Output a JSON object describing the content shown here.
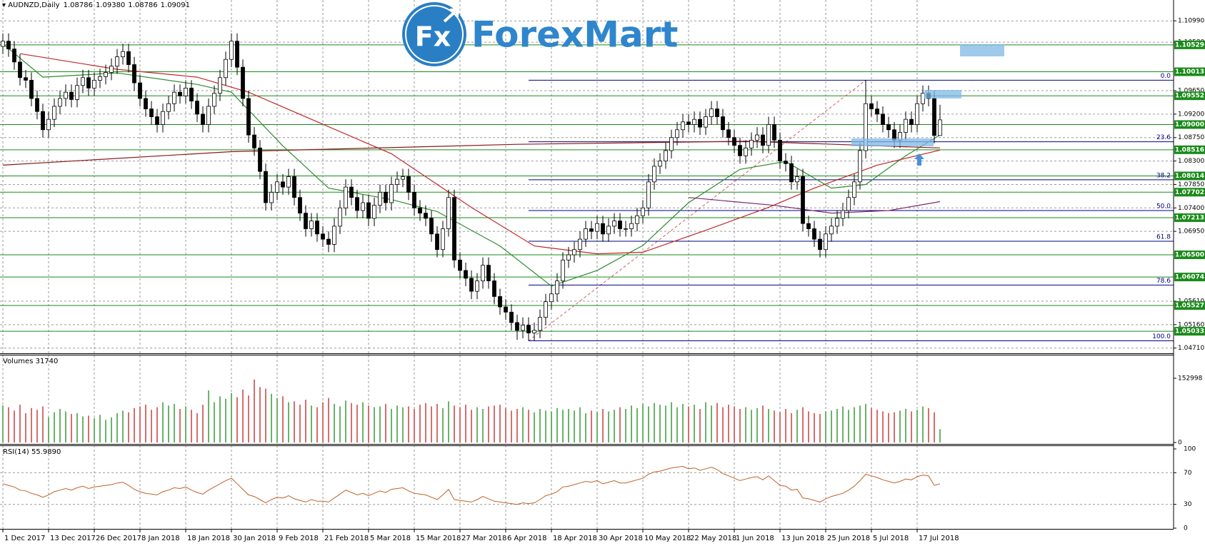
{
  "logo": {
    "badge": "Fx",
    "name": "ForexMart"
  },
  "chart_data": {
    "type": "candlestick",
    "title": "AUDNZD,Daily",
    "header_prices": [
      "1.08786",
      "1.09380",
      "1.08786",
      "1.09091"
    ],
    "categories": [
      "1 Dec 2017",
      null,
      null,
      null,
      null,
      null,
      null,
      null,
      "13 Dec 2017",
      null,
      null,
      null,
      null,
      null,
      null,
      null,
      "26 Dec 2017",
      null,
      null,
      null,
      null,
      null,
      null,
      null,
      "8 Jan 2018",
      null,
      null,
      null,
      null,
      null,
      null,
      null,
      "18 Jan 2018",
      null,
      null,
      null,
      null,
      null,
      null,
      null,
      "30 Jan 2018",
      null,
      null,
      null,
      null,
      null,
      null,
      null,
      "9 Feb 2018",
      null,
      null,
      null,
      null,
      null,
      null,
      null,
      "21 Feb 2018",
      null,
      null,
      null,
      null,
      null,
      null,
      null,
      "5 Mar 2018",
      null,
      null,
      null,
      null,
      null,
      null,
      null,
      "15 Mar 2018",
      null,
      null,
      null,
      null,
      null,
      null,
      null,
      "27 Mar 2018",
      null,
      null,
      null,
      null,
      null,
      null,
      null,
      "6 Apr 2018",
      null,
      null,
      null,
      null,
      null,
      null,
      null,
      "18 Apr 2018",
      null,
      null,
      null,
      null,
      null,
      null,
      null,
      "30 Apr 2018",
      null,
      null,
      null,
      null,
      null,
      null,
      null,
      "10 May 2018",
      null,
      null,
      null,
      null,
      null,
      null,
      null,
      "22 May 2018",
      null,
      null,
      null,
      null,
      null,
      null,
      null,
      "1 Jun 2018",
      null,
      null,
      null,
      null,
      null,
      null,
      null,
      "13 Jun 2018",
      null,
      null,
      null,
      null,
      null,
      null,
      null,
      "25 Jun 2018",
      null,
      null,
      null,
      null,
      null,
      null,
      null,
      "5 Jul 2018",
      null,
      null,
      null,
      null,
      null,
      null,
      null,
      "17 Jul 2018",
      null,
      null,
      null,
      null
    ],
    "open": [
      1.105,
      1.106,
      1.1045,
      1.102,
      1.099,
      1.0985,
      1.095,
      1.0925,
      1.089,
      1.091,
      1.0935,
      1.095,
      1.0962,
      1.0948,
      1.0975,
      1.099,
      1.097,
      1.0985,
      1.0992,
      1.1,
      1.1012,
      1.103,
      1.104,
      1.1015,
      1.098,
      1.095,
      1.093,
      1.0915,
      1.09,
      1.0925,
      1.094,
      1.0962,
      1.0955,
      1.097,
      1.0945,
      1.092,
      1.09,
      1.0935,
      1.096,
      1.099,
      1.1025,
      1.106,
      1.101,
      1.095,
      1.088,
      1.0855,
      1.081,
      1.075,
      1.077,
      1.079,
      1.078,
      1.08,
      1.076,
      1.073,
      1.07,
      1.0715,
      1.069,
      1.068,
      1.067,
      1.0705,
      1.074,
      1.078,
      1.076,
      1.0735,
      1.075,
      1.072,
      1.0745,
      1.077,
      1.075,
      1.0785,
      1.0795,
      1.08,
      1.077,
      1.074,
      1.073,
      1.072,
      1.069,
      1.066,
      1.07,
      1.076,
      1.064,
      1.062,
      1.0605,
      1.058,
      1.06,
      1.063,
      1.06,
      1.057,
      1.055,
      1.054,
      1.052,
      1.0505,
      1.0515,
      1.05,
      1.0505,
      1.053,
      1.056,
      1.0575,
      1.06,
      1.064,
      1.065,
      1.066,
      1.068,
      1.07,
      1.0695,
      1.071,
      1.069,
      1.0705,
      1.0715,
      1.07,
      1.07,
      1.071,
      1.0725,
      1.074,
      1.079,
      1.082,
      1.083,
      1.085,
      1.0875,
      1.089,
      1.0905,
      1.09,
      1.091,
      1.0895,
      1.0915,
      1.093,
      1.0915,
      1.089,
      1.0875,
      1.086,
      1.084,
      1.0855,
      1.087,
      1.088,
      1.086,
      1.09,
      1.087,
      1.083,
      1.0825,
      1.079,
      1.08,
      1.071,
      1.07,
      1.068,
      1.066,
      1.069,
      1.0705,
      1.072,
      1.0735,
      1.076,
      1.079,
      1.085,
      1.094,
      1.093,
      1.092,
      1.09,
      1.089,
      1.087,
      1.0885,
      1.091,
      1.09,
      1.094,
      1.096,
      1.095,
      1.0879
    ],
    "high": [
      1.1075,
      1.1075,
      1.106,
      1.1035,
      1.1005,
      1.1,
      1.0965,
      1.094,
      1.0925,
      1.095,
      1.0965,
      1.0977,
      1.0977,
      1.099,
      1.1005,
      1.1005,
      1.1,
      1.1007,
      1.1015,
      1.1027,
      1.1045,
      1.1055,
      1.1055,
      1.103,
      1.0995,
      1.0965,
      1.0945,
      1.093,
      1.094,
      1.0955,
      1.0977,
      1.0977,
      1.0985,
      1.0985,
      1.096,
      1.0935,
      1.095,
      1.0975,
      1.1005,
      1.104,
      1.1075,
      1.1075,
      1.1025,
      1.0965,
      1.0895,
      1.087,
      1.0825,
      1.0785,
      1.0805,
      1.0805,
      1.0815,
      1.0815,
      1.0775,
      1.0745,
      1.073,
      1.073,
      1.0705,
      1.0695,
      1.072,
      1.0755,
      1.0795,
      1.0795,
      1.0775,
      1.0765,
      1.0765,
      1.076,
      1.0785,
      1.0785,
      1.08,
      1.081,
      1.0815,
      1.0815,
      1.0785,
      1.0755,
      1.0745,
      1.0735,
      1.0705,
      1.0715,
      1.0775,
      1.0775,
      1.0655,
      1.0635,
      1.062,
      1.0615,
      1.0645,
      1.0645,
      1.0615,
      1.0585,
      1.0565,
      1.0555,
      1.0535,
      1.053,
      1.053,
      1.052,
      1.0545,
      1.0575,
      1.059,
      1.0615,
      1.0655,
      1.0665,
      1.0675,
      1.0695,
      1.0715,
      1.0715,
      1.0725,
      1.0725,
      1.072,
      1.073,
      1.073,
      1.0715,
      1.0725,
      1.074,
      1.0755,
      1.0805,
      1.0835,
      1.0845,
      1.0865,
      1.089,
      1.0905,
      1.092,
      1.092,
      1.0925,
      1.0925,
      1.093,
      1.0945,
      1.0945,
      1.093,
      1.0905,
      1.089,
      1.0875,
      1.087,
      1.0885,
      1.0895,
      1.0895,
      1.0915,
      1.0915,
      1.0885,
      1.0845,
      1.084,
      1.0815,
      1.0815,
      1.0725,
      1.0715,
      1.0695,
      1.0705,
      1.072,
      1.0735,
      1.075,
      1.0775,
      1.0805,
      1.0865,
      1.0985,
      1.0955,
      1.0945,
      1.0935,
      1.0915,
      1.0905,
      1.09,
      1.0925,
      1.0925,
      1.0955,
      1.0975,
      1.0975,
      1.0965,
      1.0938
    ],
    "low": [
      1.1035,
      1.103,
      1.1005,
      1.0975,
      1.097,
      1.0935,
      1.091,
      1.0875,
      1.0875,
      1.0895,
      1.092,
      1.0935,
      1.0933,
      1.0933,
      1.096,
      1.0955,
      1.0955,
      1.097,
      1.0977,
      1.0985,
      1.0997,
      1.1015,
      1.1,
      1.0965,
      1.0935,
      1.0915,
      1.09,
      1.0885,
      1.0885,
      1.091,
      1.0925,
      1.094,
      1.094,
      1.093,
      1.0905,
      1.0885,
      1.0885,
      1.092,
      1.0945,
      1.0975,
      1.101,
      1.0995,
      1.0935,
      1.0865,
      1.084,
      1.0795,
      1.0735,
      1.0735,
      1.0755,
      1.0765,
      1.0765,
      1.0745,
      1.0715,
      1.0685,
      1.0685,
      1.0675,
      1.0665,
      1.0655,
      1.0655,
      1.069,
      1.0725,
      1.0745,
      1.072,
      1.072,
      1.0705,
      1.0705,
      1.073,
      1.0735,
      1.0735,
      1.077,
      1.078,
      1.0755,
      1.0725,
      1.0715,
      1.0705,
      1.0675,
      1.0645,
      1.0645,
      1.0685,
      1.0625,
      1.0605,
      1.059,
      1.0565,
      1.0565,
      1.0585,
      1.0585,
      1.0555,
      1.0535,
      1.0525,
      1.0505,
      1.0487,
      1.049,
      1.0485,
      1.0485,
      1.049,
      1.0515,
      1.0545,
      1.056,
      1.0585,
      1.0625,
      1.0635,
      1.0645,
      1.0665,
      1.068,
      1.068,
      1.0675,
      1.0675,
      1.069,
      1.0685,
      1.0685,
      1.0685,
      1.0695,
      1.071,
      1.0725,
      1.0775,
      1.0805,
      1.0815,
      1.0835,
      1.086,
      1.0875,
      1.0885,
      1.0885,
      1.088,
      1.088,
      1.09,
      1.09,
      1.0875,
      1.086,
      1.0845,
      1.0825,
      1.0825,
      1.084,
      1.0855,
      1.0845,
      1.0845,
      1.0855,
      1.0815,
      1.081,
      1.0775,
      1.0775,
      1.0695,
      1.0685,
      1.0665,
      1.0645,
      1.0645,
      1.0675,
      1.069,
      1.0705,
      1.072,
      1.0745,
      1.0775,
      1.0835,
      1.0915,
      1.0905,
      1.0885,
      1.0875,
      1.0855,
      1.0855,
      1.087,
      1.0885,
      1.0885,
      1.0925,
      1.0935,
      1.0864,
      1.0879
    ],
    "close": [
      1.106,
      1.1045,
      1.102,
      1.099,
      1.0985,
      1.095,
      1.0925,
      1.089,
      1.091,
      1.0935,
      1.095,
      1.0962,
      1.0948,
      1.0975,
      1.099,
      1.097,
      1.0985,
      1.0992,
      1.1,
      1.1012,
      1.103,
      1.104,
      1.1015,
      1.098,
      1.095,
      1.093,
      1.0915,
      1.09,
      1.0925,
      1.094,
      1.0962,
      1.0955,
      1.097,
      1.0945,
      1.092,
      1.09,
      1.0935,
      1.096,
      1.099,
      1.1025,
      1.106,
      1.101,
      1.095,
      1.088,
      1.0855,
      1.081,
      1.075,
      1.077,
      1.079,
      1.078,
      1.08,
      1.076,
      1.073,
      1.07,
      1.0715,
      1.069,
      1.068,
      1.067,
      1.0705,
      1.074,
      1.078,
      1.076,
      1.0735,
      1.075,
      1.072,
      1.0745,
      1.077,
      1.075,
      1.0785,
      1.0795,
      1.08,
      1.077,
      1.074,
      1.073,
      1.072,
      1.069,
      1.066,
      1.07,
      1.076,
      1.064,
      1.062,
      1.0605,
      1.058,
      1.06,
      1.063,
      1.06,
      1.057,
      1.055,
      1.054,
      1.052,
      1.0505,
      1.0515,
      1.05,
      1.0505,
      1.053,
      1.056,
      1.0575,
      1.06,
      1.064,
      1.065,
      1.066,
      1.068,
      1.07,
      1.0695,
      1.071,
      1.069,
      1.0705,
      1.0715,
      1.07,
      1.07,
      1.071,
      1.0725,
      1.074,
      1.079,
      1.082,
      1.083,
      1.085,
      1.0875,
      1.089,
      1.0905,
      1.09,
      1.091,
      1.0895,
      1.0915,
      1.093,
      1.0915,
      1.089,
      1.0875,
      1.086,
      1.084,
      1.0855,
      1.087,
      1.088,
      1.086,
      1.09,
      1.087,
      1.083,
      1.0825,
      1.079,
      1.08,
      1.071,
      1.07,
      1.068,
      1.066,
      1.069,
      1.0705,
      1.072,
      1.0735,
      1.076,
      1.079,
      1.085,
      1.094,
      1.093,
      1.092,
      1.09,
      1.089,
      1.087,
      1.0885,
      1.091,
      1.09,
      1.094,
      1.096,
      1.095,
      1.0879,
      1.0909
    ],
    "up_color": "#ffffff",
    "down_color": "#000000",
    "wick_color": "#000000",
    "ylim": [
      1.0461,
      1.1139
    ],
    "yticks": [
      {
        "value": 1.1099,
        "label": "1.10990"
      },
      {
        "value": 1.1058,
        "label": "1.10580"
      },
      {
        "value": 1.0965,
        "label": "1.09650"
      },
      {
        "value": 1.092,
        "label": "1.09200"
      },
      {
        "value": 1.0875,
        "label": "1.08750"
      },
      {
        "value": 1.083,
        "label": "1.08300"
      },
      {
        "value": 1.0785,
        "label": "1.07850"
      },
      {
        "value": 1.074,
        "label": "1.07400"
      },
      {
        "value": 1.0695,
        "label": "1.06950"
      },
      {
        "value": 1.0561,
        "label": "1.05610"
      },
      {
        "value": 1.0516,
        "label": "1.05160"
      },
      {
        "value": 1.0471,
        "label": "1.04710"
      }
    ],
    "grid": true,
    "levels": {
      "color": "#1a8a1a",
      "values": [
        1.10529,
        1.10013,
        1.09552,
        {
          "value": 1.09,
          "label": "1.09000"
        },
        1.08516,
        1.08014,
        1.07702,
        1.07213,
        {
          "value": 1.065,
          "label": "1.06500"
        },
        1.06074,
        1.05527,
        1.05033
      ]
    },
    "fib": {
      "color": "#000080",
      "line_color": "#d06060",
      "levels": [
        {
          "value": 0,
          "label": "0.0"
        },
        23.6,
        38.2,
        {
          "value": 50,
          "label": "50.0"
        },
        61.8,
        78.6,
        {
          "value": 100,
          "label": "100.0"
        }
      ]
    },
    "ma": [
      {
        "color": "#2e8b2e",
        "x": [
          0,
          7,
          20,
          34,
          40,
          49,
          57,
          68,
          76,
          87,
          96,
          104,
          112,
          120,
          129,
          137,
          145,
          151,
          158,
          164
        ],
        "values": [
          1.1055,
          1.0991,
          1.0999,
          1.0977,
          1.0962,
          1.0859,
          1.0778,
          1.0756,
          1.0733,
          1.0667,
          1.059,
          1.062,
          1.0668,
          1.075,
          1.0814,
          1.0829,
          1.0778,
          1.0785,
          1.084,
          1.088
        ]
      },
      {
        "color": "#c0282a",
        "x": [
          3,
          20,
          34,
          43,
          68,
          82,
          93,
          104,
          112,
          123,
          134,
          142,
          153,
          164
        ],
        "values": [
          1.1036,
          1.1006,
          1.0991,
          1.0962,
          1.0844,
          1.0741,
          1.0667,
          1.0652,
          1.0655,
          1.0697,
          1.0741,
          1.0778,
          1.0822,
          1.0851
        ]
      },
      {
        "color": "#8b1a1a",
        "x": [
          0,
          40,
          90,
          130,
          164
        ],
        "values": [
          1.0822,
          1.0848,
          1.0862,
          1.0868,
          1.0855
        ]
      },
      {
        "color": "#7a2a6a",
        "x": [
          120,
          135,
          145,
          155,
          164
        ],
        "values": [
          1.076,
          1.0745,
          1.073,
          1.0735,
          1.0752
        ]
      }
    ],
    "volume": {
      "title": "Volumes 31740",
      "up_color": "#1a8a1a",
      "down_color": "#c02020",
      "ylim": [
        0,
        152998
      ],
      "yticks": [
        152998,
        0
      ],
      "values": [
        88000,
        84000,
        76000,
        90000,
        70000,
        82000,
        78000,
        86000,
        60000,
        72000,
        80000,
        74000,
        68000,
        70000,
        62000,
        64000,
        58000,
        66000,
        54000,
        60000,
        70000,
        76000,
        72000,
        82000,
        86000,
        90000,
        78000,
        84000,
        96000,
        88000,
        92000,
        80000,
        86000,
        78000,
        70000,
        90000,
        124000,
        96000,
        110000,
        104000,
        118000,
        108000,
        126000,
        112000,
        150000,
        132000,
        128000,
        116000,
        106000,
        110000,
        96000,
        98000,
        90000,
        102000,
        88000,
        84000,
        96000,
        106000,
        92000,
        86000,
        100000,
        94000,
        90000,
        96000,
        88000,
        84000,
        86000,
        92000,
        80000,
        88000,
        84000,
        86000,
        80000,
        90000,
        94000,
        86000,
        92000,
        82000,
        98000,
        88000,
        84000,
        90000,
        78000,
        84000,
        80000,
        86000,
        88000,
        90000,
        82000,
        76000,
        80000,
        84000,
        78000,
        72000,
        80000,
        76000,
        74000,
        82000,
        78000,
        80000,
        76000,
        84000,
        70000,
        76000,
        72000,
        80000,
        74000,
        78000,
        84000,
        80000,
        88000,
        82000,
        92000,
        86000,
        94000,
        90000,
        88000,
        96000,
        84000,
        92000,
        86000,
        90000,
        80000,
        96000,
        88000,
        94000,
        84000,
        90000,
        86000,
        80000,
        84000,
        78000,
        82000,
        88000,
        80000,
        76000,
        72000,
        80000,
        70000,
        78000,
        84000,
        74000,
        70000,
        68000,
        74000,
        76000,
        80000,
        86000,
        78000,
        84000,
        88000,
        92000,
        82000,
        78000,
        74000,
        70000,
        72000,
        76000,
        80000,
        74000,
        78000,
        86000,
        82000,
        72000,
        31740
      ]
    },
    "rsi": {
      "title": "RSI(14) 55.9890",
      "color": "#c0622a",
      "ylim": [
        0,
        100
      ],
      "yticks": [
        0,
        30,
        70,
        100
      ],
      "values": [
        56,
        54,
        52,
        48,
        47,
        44,
        42,
        39,
        42,
        46,
        48,
        50,
        48,
        51,
        53,
        50,
        52,
        53,
        54,
        55,
        57,
        58,
        54,
        49,
        46,
        44,
        43,
        42,
        46,
        48,
        51,
        50,
        52,
        48,
        45,
        43,
        48,
        52,
        56,
        60,
        63,
        56,
        49,
        42,
        40,
        36,
        32,
        36,
        39,
        38,
        41,
        37,
        35,
        33,
        36,
        34,
        34,
        33,
        38,
        43,
        48,
        45,
        42,
        44,
        41,
        44,
        47,
        45,
        49,
        50,
        51,
        47,
        44,
        43,
        42,
        39,
        36,
        42,
        49,
        36,
        35,
        34,
        33,
        36,
        40,
        37,
        34,
        33,
        32,
        31,
        30,
        32,
        31,
        32,
        36,
        41,
        43,
        46,
        52,
        53,
        55,
        57,
        59,
        58,
        60,
        56,
        58,
        60,
        57,
        57,
        59,
        61,
        63,
        68,
        71,
        72,
        74,
        76,
        77,
        78,
        75,
        76,
        73,
        75,
        77,
        74,
        69,
        66,
        63,
        60,
        62,
        64,
        65,
        61,
        66,
        60,
        54,
        53,
        48,
        49,
        38,
        37,
        35,
        33,
        37,
        40,
        42,
        44,
        48,
        53,
        60,
        68,
        66,
        64,
        61,
        59,
        57,
        59,
        62,
        61,
        65,
        67,
        66,
        54,
        55.989
      ]
    }
  }
}
